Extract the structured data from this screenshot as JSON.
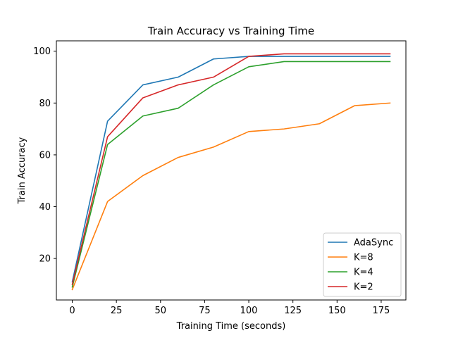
{
  "chart_data": {
    "type": "line",
    "title": "Train Accuracy vs Training Time",
    "xlabel": "Training Time (seconds)",
    "ylabel": "Train Accuracy",
    "xlim": [
      -9,
      189
    ],
    "ylim": [
      4,
      104
    ],
    "xticks": [
      0,
      25,
      50,
      75,
      100,
      125,
      150,
      175
    ],
    "yticks": [
      20,
      40,
      60,
      80,
      100
    ],
    "grid": false,
    "legend_position": "lower-right",
    "series": [
      {
        "name": "AdaSync",
        "color": "#1f77b4",
        "x": [
          0,
          20,
          40,
          60,
          80,
          100,
          120,
          140,
          160,
          180
        ],
        "y": [
          11,
          73,
          87,
          90,
          97,
          98,
          98,
          98,
          98,
          98
        ]
      },
      {
        "name": "K=8",
        "color": "#ff7f0e",
        "x": [
          0,
          20,
          40,
          60,
          80,
          100,
          120,
          140,
          160,
          180
        ],
        "y": [
          8,
          42,
          52,
          59,
          63,
          69,
          70,
          72,
          79,
          80
        ]
      },
      {
        "name": "K=4",
        "color": "#2ca02c",
        "x": [
          0,
          20,
          40,
          60,
          80,
          100,
          120,
          140,
          160,
          180
        ],
        "y": [
          9,
          64,
          75,
          78,
          87,
          94,
          96,
          96,
          96,
          96
        ]
      },
      {
        "name": "K=2",
        "color": "#d62728",
        "x": [
          0,
          20,
          40,
          60,
          80,
          100,
          120,
          140,
          160,
          180
        ],
        "y": [
          10,
          67,
          82,
          87,
          90,
          98,
          99,
          99,
          99,
          99
        ]
      }
    ]
  }
}
